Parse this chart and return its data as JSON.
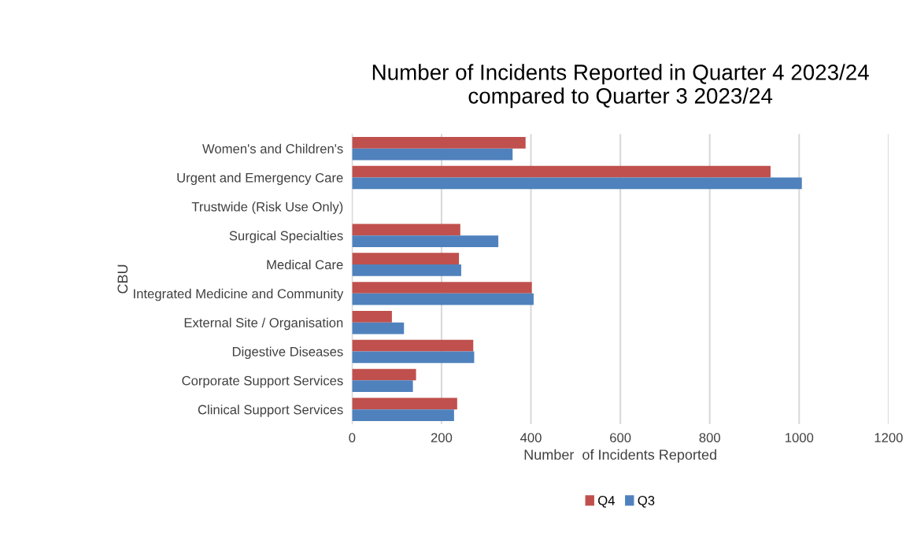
{
  "chart_data": {
    "type": "bar",
    "orientation": "horizontal",
    "title": "Number of Incidents Reported in Quarter 4 2023/24\ncompared to Quarter 3 2023/24",
    "xlabel": "Number  of Incidents Reported",
    "ylabel": "CBU",
    "categories": [
      "Women's and Children's",
      "Urgent and Emergency Care",
      "Trustwide (Risk Use Only)",
      "Surgical Specialties",
      "Medical Care",
      "Integrated Medicine and Community",
      "External Site / Organisation",
      "Digestive Diseases",
      "Corporate Support Services",
      "Clinical Support Services"
    ],
    "series": [
      {
        "name": "Q4",
        "color": "#c0504d",
        "values": [
          388,
          936,
          null,
          242,
          239,
          402,
          89,
          271,
          143,
          235
        ]
      },
      {
        "name": "Q3",
        "color": "#4f81bd",
        "values": [
          359,
          1006,
          null,
          327,
          244,
          406,
          116,
          273,
          136,
          228
        ]
      }
    ],
    "xlim": [
      0,
      1200
    ],
    "xticks": [
      0,
      200,
      400,
      600,
      800,
      1000,
      1200
    ],
    "grid": "x",
    "legend": "bottom"
  }
}
